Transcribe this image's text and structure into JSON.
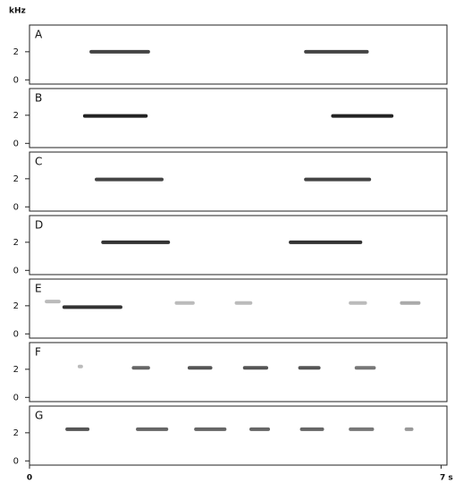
{
  "chart_data": [
    {
      "type": "spectrogram",
      "label": "A",
      "ylabel": "kHz",
      "xlim": [
        0,
        7.1
      ],
      "ylim": [
        -0.3,
        3.9
      ],
      "yticks": [
        0,
        2
      ],
      "syllables": [
        {
          "start": 1.02,
          "end": 2.05,
          "khz": 2.0,
          "color": "#444"
        },
        {
          "start": 4.67,
          "end": 5.77,
          "khz": 2.0,
          "color": "#444"
        }
      ]
    },
    {
      "type": "spectrogram",
      "label": "B",
      "xlim": [
        0,
        7.1
      ],
      "ylim": [
        -0.3,
        3.9
      ],
      "yticks": [
        0,
        2
      ],
      "syllables": [
        {
          "start": 0.91,
          "end": 2.01,
          "khz": 1.95,
          "color": "#222"
        },
        {
          "start": 5.13,
          "end": 6.19,
          "khz": 1.95,
          "color": "#222"
        }
      ]
    },
    {
      "type": "spectrogram",
      "label": "C",
      "xlim": [
        0,
        7.1
      ],
      "ylim": [
        -0.3,
        3.9
      ],
      "yticks": [
        0,
        2
      ],
      "syllables": [
        {
          "start": 1.11,
          "end": 2.28,
          "khz": 1.95,
          "color": "#444"
        },
        {
          "start": 4.67,
          "end": 5.81,
          "khz": 1.95,
          "color": "#444"
        }
      ]
    },
    {
      "type": "spectrogram",
      "label": "D",
      "xlim": [
        0,
        7.1
      ],
      "ylim": [
        -0.3,
        3.9
      ],
      "yticks": [
        0,
        2
      ],
      "syllables": [
        {
          "start": 1.22,
          "end": 2.39,
          "khz": 2.0,
          "color": "#333"
        },
        {
          "start": 4.41,
          "end": 5.66,
          "khz": 2.0,
          "color": "#333"
        }
      ]
    },
    {
      "type": "spectrogram",
      "label": "E",
      "xlim": [
        0,
        7.1
      ],
      "ylim": [
        -0.3,
        3.9
      ],
      "yticks": [
        0,
        2
      ],
      "syllables": [
        {
          "start": 0.26,
          "end": 0.53,
          "khz": 2.3,
          "color": "#bbb"
        },
        {
          "start": 0.56,
          "end": 1.58,
          "khz": 1.9,
          "color": "#333"
        },
        {
          "start": 2.47,
          "end": 2.81,
          "khz": 2.2,
          "color": "#bbb"
        },
        {
          "start": 3.49,
          "end": 3.79,
          "khz": 2.2,
          "color": "#bbb"
        },
        {
          "start": 5.43,
          "end": 5.74,
          "khz": 2.2,
          "color": "#bbb"
        },
        {
          "start": 6.3,
          "end": 6.65,
          "khz": 2.2,
          "color": "#aaa"
        }
      ]
    },
    {
      "type": "spectrogram",
      "label": "F",
      "xlim": [
        0,
        7.1
      ],
      "ylim": [
        -0.3,
        3.9
      ],
      "yticks": [
        0,
        2
      ],
      "syllables": [
        {
          "start": 0.82,
          "end": 0.91,
          "khz": 2.2,
          "color": "#bbb"
        },
        {
          "start": 1.74,
          "end": 2.05,
          "khz": 2.1,
          "color": "#666"
        },
        {
          "start": 2.69,
          "end": 3.11,
          "khz": 2.1,
          "color": "#555"
        },
        {
          "start": 3.63,
          "end": 4.06,
          "khz": 2.1,
          "color": "#555"
        },
        {
          "start": 4.57,
          "end": 4.95,
          "khz": 2.1,
          "color": "#555"
        },
        {
          "start": 5.53,
          "end": 5.89,
          "khz": 2.1,
          "color": "#777"
        }
      ]
    },
    {
      "type": "spectrogram",
      "label": "G",
      "xlim": [
        0,
        7.1
      ],
      "ylim": [
        -0.3,
        3.9
      ],
      "yticks": [
        0,
        2
      ],
      "xticks": [
        0,
        {
          "value": 7,
          "label": "7 s"
        }
      ],
      "syllables": [
        {
          "start": 0.61,
          "end": 1.02,
          "khz": 2.25,
          "color": "#555"
        },
        {
          "start": 1.81,
          "end": 2.36,
          "khz": 2.25,
          "color": "#666"
        },
        {
          "start": 2.8,
          "end": 3.35,
          "khz": 2.25,
          "color": "#666"
        },
        {
          "start": 3.74,
          "end": 4.09,
          "khz": 2.25,
          "color": "#666"
        },
        {
          "start": 4.6,
          "end": 5.01,
          "khz": 2.25,
          "color": "#666"
        },
        {
          "start": 5.43,
          "end": 5.86,
          "khz": 2.25,
          "color": "#777"
        },
        {
          "start": 6.38,
          "end": 6.53,
          "khz": 2.25,
          "color": "#999"
        }
      ]
    }
  ]
}
